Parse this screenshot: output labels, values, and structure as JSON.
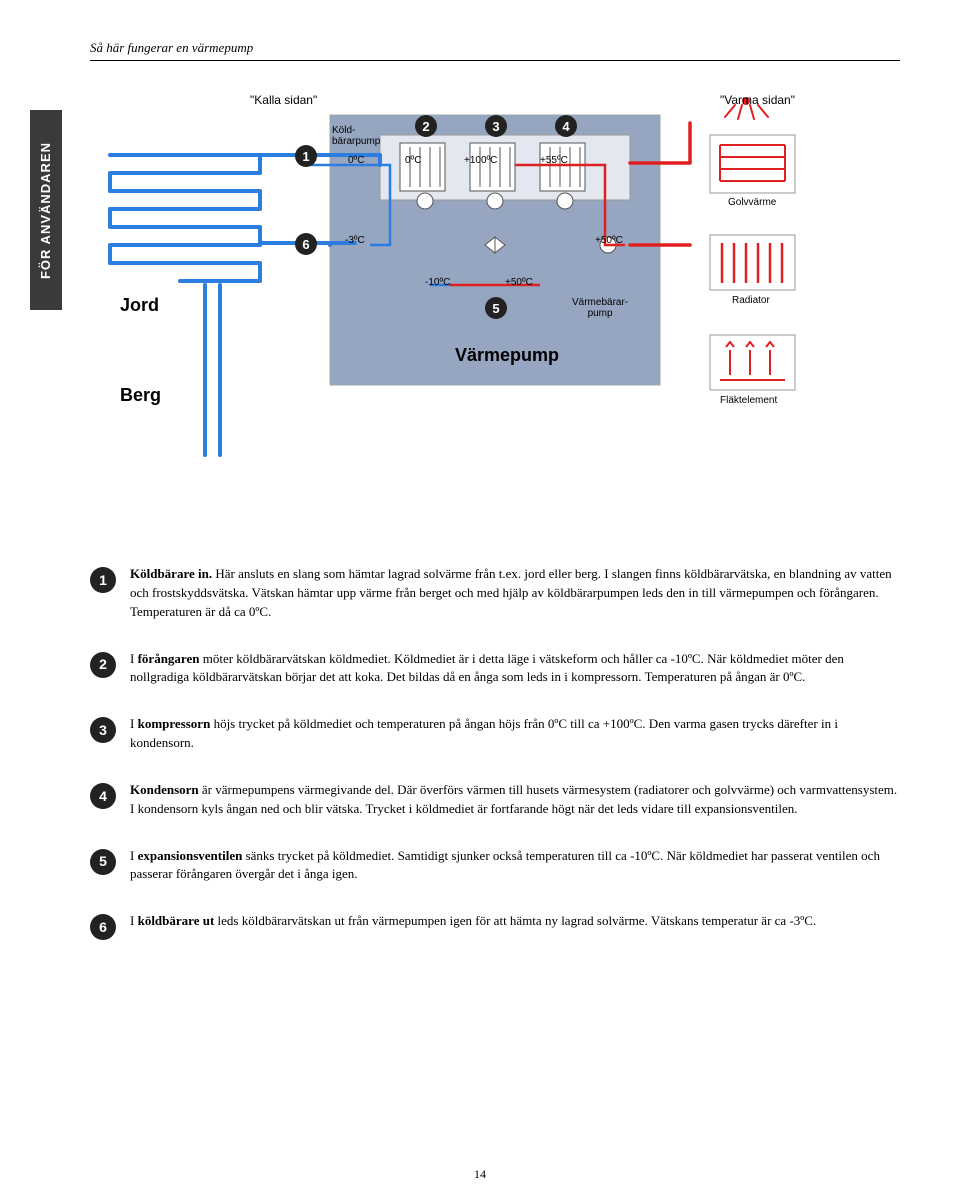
{
  "header": "Så här fungerar en värmepump",
  "side_tab": "FÖR ANVÄNDAREN",
  "page_number": "14",
  "diagram": {
    "cold_side": "\"Kalla sidan\"",
    "warm_side": "\"Varma sidan\"",
    "jord": "Jord",
    "berg": "Berg",
    "koldbararpump": "Köld-\nbärarpump",
    "varmebararpump": "Värmebärar-\npump",
    "main_title": "Värmepump",
    "golvvarme": "Golvvärme",
    "radiator": "Radiator",
    "flaktelement": "Fläktelement",
    "t_0a": "0ºC",
    "t_0b": "0ºC",
    "t_100": "+100ºC",
    "t_55": "+55ºC",
    "t_neg3": "-3ºC",
    "t_50a": "+50ºC",
    "t_neg10": "-10ºC",
    "t_50b": "+50ºC",
    "n1": "1",
    "n2": "2",
    "n3": "3",
    "n4": "4",
    "n5": "5",
    "n6": "6",
    "colors": {
      "panel_bg": "#96a5c0",
      "panel_border": "#9aa",
      "inner_bg": "#e3e8f0",
      "cold_line": "#2b7de0",
      "hot_line": "#e02020",
      "box_fill": "#ffffff",
      "box_stroke": "#555"
    }
  },
  "items": [
    {
      "n": "1",
      "html": "<b>Köldbärare in.</b> Här ansluts en slang som hämtar lagrad solvärme från t.ex. jord eller berg. I slangen finns köldbärarvätska, en blandning av vatten och frostskyddsvätska. Vätskan hämtar upp värme från berget och med hjälp av köldbärarpumpen leds den in till värmepumpen och förångaren. Temperaturen är då ca 0ºC."
    },
    {
      "n": "2",
      "html": "I <b>förångaren</b> möter köldbärarvätskan köldmediet. Köldmediet är i detta läge i vätskeform och håller ca -10ºC. När köldmediet möter den nollgradiga köldbärarvätskan börjar det att koka. Det bildas då en ånga som leds in i kompressorn. Temperaturen på ångan är 0ºC."
    },
    {
      "n": "3",
      "html": "I <b>kompressorn</b> höjs trycket på köldmediet och temperaturen på ångan höjs från 0ºC till ca +100ºC. Den varma gasen trycks därefter in i kondensorn."
    },
    {
      "n": "4",
      "html": "<b>Kondensorn</b> är värmepumpens värmegivande del. Där överförs värmen till husets värmesystem (radiatorer och golvvärme) och varmvattensystem. I kondensorn kyls ångan ned och blir vätska. Trycket i köldmediet är fortfarande högt när det leds vidare till expansionsventilen."
    },
    {
      "n": "5",
      "html": "I <b>expansionsventilen</b> sänks trycket på köldmediet. Samtidigt sjunker också temperaturen till ca -10ºC. När köldmediet har passerat ventilen och passerar förångaren övergår det i ånga igen."
    },
    {
      "n": "6",
      "html": "I <b>köldbärare ut</b> leds köldbärarvätskan ut från värmepumpen igen för att hämta ny lagrad solvärme. Vätskans temperatur är ca -3ºC."
    }
  ]
}
